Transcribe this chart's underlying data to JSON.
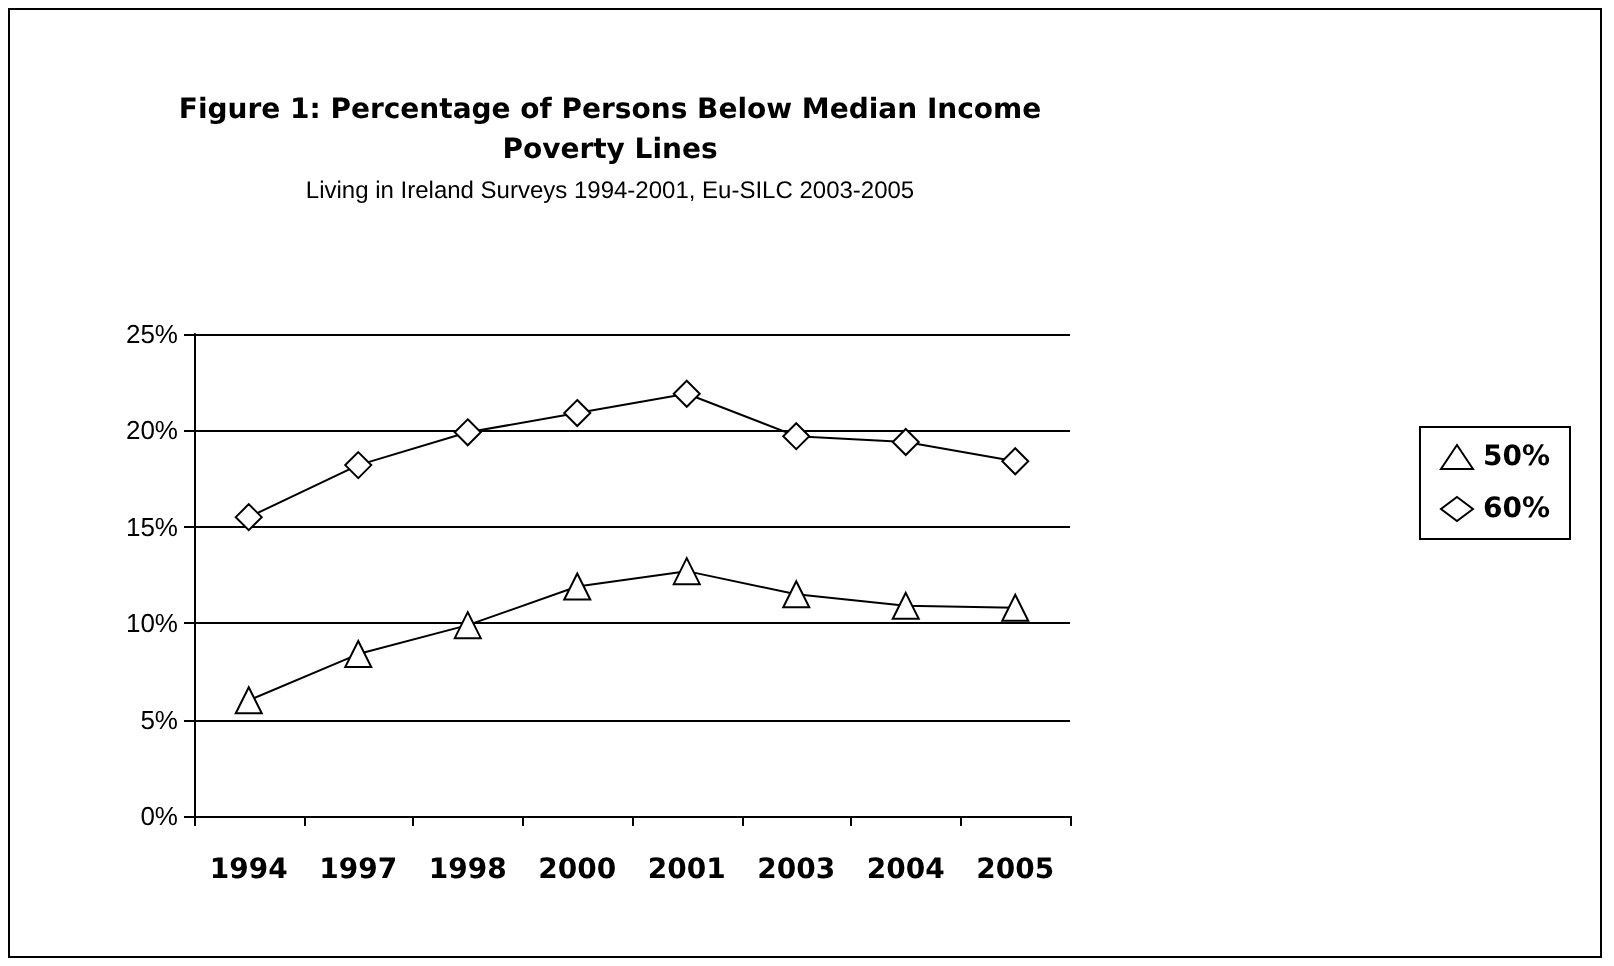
{
  "chart_data": {
    "type": "line",
    "title": "Figure 1: Percentage of Persons Below Median Income\nPoverty Lines",
    "subtitle": "Living in Ireland Surveys 1994-2001, Eu-SILC 2003-2005",
    "categories": [
      "1994",
      "1997",
      "1998",
      "2000",
      "2001",
      "2003",
      "2004",
      "2005"
    ],
    "series": [
      {
        "name": "50%",
        "color": "#000000",
        "marker": "triangle",
        "values": [
          6.0,
          8.4,
          9.9,
          11.9,
          12.7,
          11.5,
          10.9,
          10.8
        ]
      },
      {
        "name": "60%",
        "color": "#000000",
        "marker": "diamond",
        "values": [
          15.5,
          18.2,
          19.9,
          20.9,
          21.9,
          19.7,
          19.4,
          18.4
        ]
      }
    ],
    "ylim": [
      0,
      25
    ],
    "yticks": [
      {
        "value": 0,
        "label": "0%"
      },
      {
        "value": 5,
        "label": "5%"
      },
      {
        "value": 10,
        "label": "10%"
      },
      {
        "value": 15,
        "label": "15%"
      },
      {
        "value": 20,
        "label": "20%"
      },
      {
        "value": 25,
        "label": "25%"
      }
    ],
    "grid": "y",
    "legend": "right",
    "line_style": "solid"
  }
}
